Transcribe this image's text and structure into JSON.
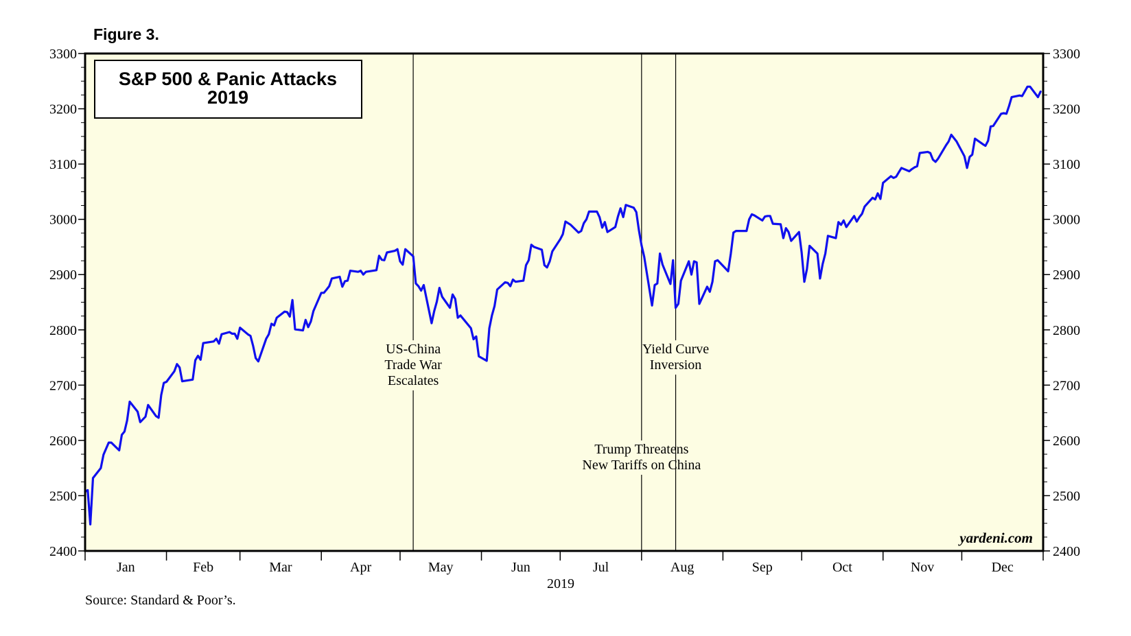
{
  "figure_label": "Figure 3.",
  "source": "Source: Standard & Poor’s.",
  "watermark": "yardeni.com",
  "colors": {
    "line": "#1010ee",
    "plot_bg": "#fdfde3",
    "frame": "#000000"
  },
  "chart_data": {
    "type": "line",
    "title": "S&P 500 & Panic Attacks",
    "subtitle": "2019",
    "xlabel": "2019",
    "x_range": [
      "2019-01-01",
      "2019-12-31"
    ],
    "ylim": [
      2400,
      3300
    ],
    "y_ticks": [
      2400,
      2500,
      2600,
      2700,
      2800,
      2900,
      3000,
      3100,
      3200,
      3300
    ],
    "y_axes": "left-and-right",
    "grid": false,
    "month_labels": [
      "Jan",
      "Feb",
      "Mar",
      "Apr",
      "May",
      "Jun",
      "Jul",
      "Aug",
      "Sep",
      "Oct",
      "Nov",
      "Dec"
    ],
    "annotations": [
      {
        "date": "2019-05-06",
        "lines": [
          "US-China",
          "Trade War",
          "Escalates"
        ],
        "label_position": "middle"
      },
      {
        "date": "2019-08-01",
        "lines": [
          "Trump Threatens",
          "New Tariffs on China"
        ],
        "label_position": "lower"
      },
      {
        "date": "2019-08-14",
        "lines": [
          "Yield Curve",
          "Inversion"
        ],
        "label_position": "middle"
      }
    ],
    "series": [
      {
        "values": [
          [
            "2019-01-01",
            2507
          ],
          [
            "2019-01-02",
            2510
          ],
          [
            "2019-01-03",
            2448
          ],
          [
            "2019-01-04",
            2532
          ],
          [
            "2019-01-07",
            2550
          ],
          [
            "2019-01-08",
            2574
          ],
          [
            "2019-01-10",
            2596
          ],
          [
            "2019-01-11",
            2596
          ],
          [
            "2019-01-14",
            2582
          ],
          [
            "2019-01-15",
            2610
          ],
          [
            "2019-01-16",
            2616
          ],
          [
            "2019-01-17",
            2636
          ],
          [
            "2019-01-18",
            2670
          ],
          [
            "2019-01-21",
            2652
          ],
          [
            "2019-01-22",
            2633
          ],
          [
            "2019-01-24",
            2643
          ],
          [
            "2019-01-25",
            2664
          ],
          [
            "2019-01-28",
            2644
          ],
          [
            "2019-01-29",
            2641
          ],
          [
            "2019-01-30",
            2682
          ],
          [
            "2019-01-31",
            2704
          ],
          [
            "2019-02-01",
            2706
          ],
          [
            "2019-02-04",
            2725
          ],
          [
            "2019-02-05",
            2738
          ],
          [
            "2019-02-06",
            2732
          ],
          [
            "2019-02-07",
            2707
          ],
          [
            "2019-02-11",
            2710
          ],
          [
            "2019-02-12",
            2745
          ],
          [
            "2019-02-13",
            2753
          ],
          [
            "2019-02-14",
            2746
          ],
          [
            "2019-02-15",
            2776
          ],
          [
            "2019-02-19",
            2779
          ],
          [
            "2019-02-20",
            2784
          ],
          [
            "2019-02-21",
            2775
          ],
          [
            "2019-02-22",
            2792
          ],
          [
            "2019-02-25",
            2796
          ],
          [
            "2019-02-26",
            2793
          ],
          [
            "2019-02-27",
            2793
          ],
          [
            "2019-02-28",
            2784
          ],
          [
            "2019-03-01",
            2804
          ],
          [
            "2019-03-04",
            2792
          ],
          [
            "2019-03-05",
            2789
          ],
          [
            "2019-03-06",
            2771
          ],
          [
            "2019-03-07",
            2749
          ],
          [
            "2019-03-08",
            2743
          ],
          [
            "2019-03-11",
            2784
          ],
          [
            "2019-03-12",
            2792
          ],
          [
            "2019-03-13",
            2811
          ],
          [
            "2019-03-14",
            2808
          ],
          [
            "2019-03-15",
            2822
          ],
          [
            "2019-03-18",
            2833
          ],
          [
            "2019-03-19",
            2832
          ],
          [
            "2019-03-20",
            2824
          ],
          [
            "2019-03-21",
            2854
          ],
          [
            "2019-03-22",
            2801
          ],
          [
            "2019-03-25",
            2799
          ],
          [
            "2019-03-26",
            2818
          ],
          [
            "2019-03-27",
            2805
          ],
          [
            "2019-03-28",
            2815
          ],
          [
            "2019-03-29",
            2834
          ],
          [
            "2019-04-01",
            2867
          ],
          [
            "2019-04-02",
            2867
          ],
          [
            "2019-04-03",
            2873
          ],
          [
            "2019-04-04",
            2879
          ],
          [
            "2019-04-05",
            2893
          ],
          [
            "2019-04-08",
            2896
          ],
          [
            "2019-04-09",
            2878
          ],
          [
            "2019-04-10",
            2888
          ],
          [
            "2019-04-11",
            2889
          ],
          [
            "2019-04-12",
            2907
          ],
          [
            "2019-04-15",
            2905
          ],
          [
            "2019-04-16",
            2907
          ],
          [
            "2019-04-17",
            2900
          ],
          [
            "2019-04-18",
            2905
          ],
          [
            "2019-04-22",
            2908
          ],
          [
            "2019-04-23",
            2934
          ],
          [
            "2019-04-24",
            2927
          ],
          [
            "2019-04-25",
            2926
          ],
          [
            "2019-04-26",
            2940
          ],
          [
            "2019-04-29",
            2943
          ],
          [
            "2019-04-30",
            2946
          ],
          [
            "2019-05-01",
            2924
          ],
          [
            "2019-05-02",
            2918
          ],
          [
            "2019-05-03",
            2946
          ],
          [
            "2019-05-06",
            2933
          ],
          [
            "2019-05-07",
            2884
          ],
          [
            "2019-05-08",
            2879
          ],
          [
            "2019-05-09",
            2871
          ],
          [
            "2019-05-10",
            2881
          ],
          [
            "2019-05-13",
            2812
          ],
          [
            "2019-05-14",
            2834
          ],
          [
            "2019-05-15",
            2851
          ],
          [
            "2019-05-16",
            2876
          ],
          [
            "2019-05-17",
            2860
          ],
          [
            "2019-05-20",
            2840
          ],
          [
            "2019-05-21",
            2864
          ],
          [
            "2019-05-22",
            2856
          ],
          [
            "2019-05-23",
            2822
          ],
          [
            "2019-05-24",
            2826
          ],
          [
            "2019-05-28",
            2803
          ],
          [
            "2019-05-29",
            2783
          ],
          [
            "2019-05-30",
            2788
          ],
          [
            "2019-05-31",
            2752
          ],
          [
            "2019-06-03",
            2744
          ],
          [
            "2019-06-04",
            2803
          ],
          [
            "2019-06-05",
            2826
          ],
          [
            "2019-06-06",
            2843
          ],
          [
            "2019-06-07",
            2873
          ],
          [
            "2019-06-10",
            2886
          ],
          [
            "2019-06-11",
            2885
          ],
          [
            "2019-06-12",
            2879
          ],
          [
            "2019-06-13",
            2891
          ],
          [
            "2019-06-14",
            2887
          ],
          [
            "2019-06-17",
            2889
          ],
          [
            "2019-06-18",
            2917
          ],
          [
            "2019-06-19",
            2926
          ],
          [
            "2019-06-20",
            2954
          ],
          [
            "2019-06-21",
            2950
          ],
          [
            "2019-06-24",
            2945
          ],
          [
            "2019-06-25",
            2917
          ],
          [
            "2019-06-26",
            2913
          ],
          [
            "2019-06-27",
            2924
          ],
          [
            "2019-06-28",
            2942
          ],
          [
            "2019-07-01",
            2964
          ],
          [
            "2019-07-02",
            2973
          ],
          [
            "2019-07-03",
            2996
          ],
          [
            "2019-07-05",
            2990
          ],
          [
            "2019-07-08",
            2976
          ],
          [
            "2019-07-09",
            2979
          ],
          [
            "2019-07-10",
            2993
          ],
          [
            "2019-07-11",
            3000
          ],
          [
            "2019-07-12",
            3014
          ],
          [
            "2019-07-15",
            3014
          ],
          [
            "2019-07-16",
            3004
          ],
          [
            "2019-07-17",
            2985
          ],
          [
            "2019-07-18",
            2995
          ],
          [
            "2019-07-19",
            2977
          ],
          [
            "2019-07-22",
            2986
          ],
          [
            "2019-07-23",
            3005
          ],
          [
            "2019-07-24",
            3020
          ],
          [
            "2019-07-25",
            3004
          ],
          [
            "2019-07-26",
            3026
          ],
          [
            "2019-07-29",
            3021
          ],
          [
            "2019-07-30",
            3013
          ],
          [
            "2019-07-31",
            2980
          ],
          [
            "2019-08-01",
            2953
          ],
          [
            "2019-08-02",
            2932
          ],
          [
            "2019-08-05",
            2844
          ],
          [
            "2019-08-06",
            2881
          ],
          [
            "2019-08-07",
            2884
          ],
          [
            "2019-08-08",
            2938
          ],
          [
            "2019-08-09",
            2918
          ],
          [
            "2019-08-12",
            2883
          ],
          [
            "2019-08-13",
            2926
          ],
          [
            "2019-08-14",
            2840
          ],
          [
            "2019-08-15",
            2847
          ],
          [
            "2019-08-16",
            2889
          ],
          [
            "2019-08-19",
            2924
          ],
          [
            "2019-08-20",
            2900
          ],
          [
            "2019-08-21",
            2924
          ],
          [
            "2019-08-22",
            2922
          ],
          [
            "2019-08-23",
            2847
          ],
          [
            "2019-08-26",
            2878
          ],
          [
            "2019-08-27",
            2869
          ],
          [
            "2019-08-28",
            2887
          ],
          [
            "2019-08-29",
            2924
          ],
          [
            "2019-08-30",
            2926
          ],
          [
            "2019-09-03",
            2906
          ],
          [
            "2019-09-04",
            2938
          ],
          [
            "2019-09-05",
            2976
          ],
          [
            "2019-09-06",
            2979
          ],
          [
            "2019-09-09",
            2979
          ],
          [
            "2019-09-10",
            2979
          ],
          [
            "2019-09-11",
            3000
          ],
          [
            "2019-09-12",
            3009
          ],
          [
            "2019-09-13",
            3007
          ],
          [
            "2019-09-16",
            2998
          ],
          [
            "2019-09-17",
            3005
          ],
          [
            "2019-09-18",
            3006
          ],
          [
            "2019-09-19",
            3006
          ],
          [
            "2019-09-20",
            2992
          ],
          [
            "2019-09-23",
            2991
          ],
          [
            "2019-09-24",
            2966
          ],
          [
            "2019-09-25",
            2984
          ],
          [
            "2019-09-26",
            2977
          ],
          [
            "2019-09-27",
            2961
          ],
          [
            "2019-09-30",
            2977
          ],
          [
            "2019-10-01",
            2940
          ],
          [
            "2019-10-02",
            2887
          ],
          [
            "2019-10-03",
            2910
          ],
          [
            "2019-10-04",
            2952
          ],
          [
            "2019-10-07",
            2938
          ],
          [
            "2019-10-08",
            2893
          ],
          [
            "2019-10-09",
            2919
          ],
          [
            "2019-10-10",
            2938
          ],
          [
            "2019-10-11",
            2970
          ],
          [
            "2019-10-14",
            2966
          ],
          [
            "2019-10-15",
            2995
          ],
          [
            "2019-10-16",
            2990
          ],
          [
            "2019-10-17",
            2998
          ],
          [
            "2019-10-18",
            2986
          ],
          [
            "2019-10-21",
            3006
          ],
          [
            "2019-10-22",
            2996
          ],
          [
            "2019-10-23",
            3004
          ],
          [
            "2019-10-24",
            3010
          ],
          [
            "2019-10-25",
            3023
          ],
          [
            "2019-10-28",
            3039
          ],
          [
            "2019-10-29",
            3036
          ],
          [
            "2019-10-30",
            3047
          ],
          [
            "2019-10-31",
            3037
          ],
          [
            "2019-11-01",
            3066
          ],
          [
            "2019-11-04",
            3078
          ],
          [
            "2019-11-05",
            3075
          ],
          [
            "2019-11-06",
            3077
          ],
          [
            "2019-11-07",
            3085
          ],
          [
            "2019-11-08",
            3093
          ],
          [
            "2019-11-11",
            3087
          ],
          [
            "2019-11-12",
            3091
          ],
          [
            "2019-11-13",
            3094
          ],
          [
            "2019-11-14",
            3096
          ],
          [
            "2019-11-15",
            3120
          ],
          [
            "2019-11-18",
            3122
          ],
          [
            "2019-11-19",
            3120
          ],
          [
            "2019-11-20",
            3108
          ],
          [
            "2019-11-21",
            3104
          ],
          [
            "2019-11-22",
            3110
          ],
          [
            "2019-11-25",
            3134
          ],
          [
            "2019-11-26",
            3141
          ],
          [
            "2019-11-27",
            3153
          ],
          [
            "2019-11-29",
            3141
          ],
          [
            "2019-12-02",
            3114
          ],
          [
            "2019-12-03",
            3093
          ],
          [
            "2019-12-04",
            3113
          ],
          [
            "2019-12-05",
            3117
          ],
          [
            "2019-12-06",
            3146
          ],
          [
            "2019-12-09",
            3136
          ],
          [
            "2019-12-10",
            3133
          ],
          [
            "2019-12-11",
            3142
          ],
          [
            "2019-12-12",
            3168
          ],
          [
            "2019-12-13",
            3169
          ],
          [
            "2019-12-16",
            3191
          ],
          [
            "2019-12-17",
            3192
          ],
          [
            "2019-12-18",
            3191
          ],
          [
            "2019-12-19",
            3205
          ],
          [
            "2019-12-20",
            3221
          ],
          [
            "2019-12-23",
            3224
          ],
          [
            "2019-12-24",
            3223
          ],
          [
            "2019-12-26",
            3240
          ],
          [
            "2019-12-27",
            3240
          ],
          [
            "2019-12-30",
            3221
          ],
          [
            "2019-12-31",
            3231
          ]
        ]
      }
    ]
  }
}
